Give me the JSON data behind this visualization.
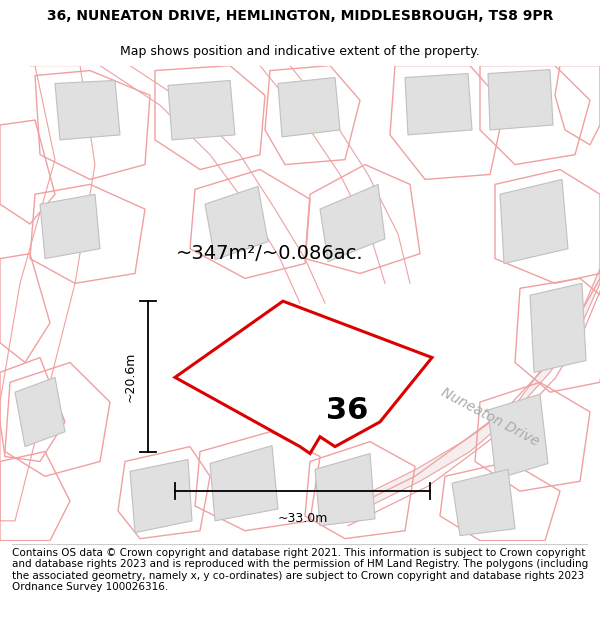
{
  "title_line1": "36, NUNEATON DRIVE, HEMLINGTON, MIDDLESBROUGH, TS8 9PR",
  "title_line2": "Map shows position and indicative extent of the property.",
  "area_text": "~347m²/~0.086ac.",
  "property_number": "36",
  "dim1_label": "~20.6m",
  "dim2_label": "~33.0m",
  "road_label": "Nuneaton Drive",
  "footer_text": "Contains OS data © Crown copyright and database right 2021. This information is subject to Crown copyright and database rights 2023 and is reproduced with the permission of HM Land Registry. The polygons (including the associated geometry, namely x, y co-ordinates) are subject to Crown copyright and database rights 2023 Ordnance Survey 100026316.",
  "bg_color": "#ffffff",
  "map_bg": "#ffffff",
  "plot_edge_color": "#dd0000",
  "plot_fill": "#ffffff",
  "parcel_edge": "#f0a0a0",
  "building_fill": "#e0e0e0",
  "building_edge": "#c0c0c0",
  "road_label_color": "#aaaaaa",
  "title_fontsize": 10,
  "subtitle_fontsize": 9,
  "footer_fontsize": 7.5,
  "area_fontsize": 14,
  "number_fontsize": 22,
  "road_label_fontsize": 10,
  "dim_fontsize": 9
}
